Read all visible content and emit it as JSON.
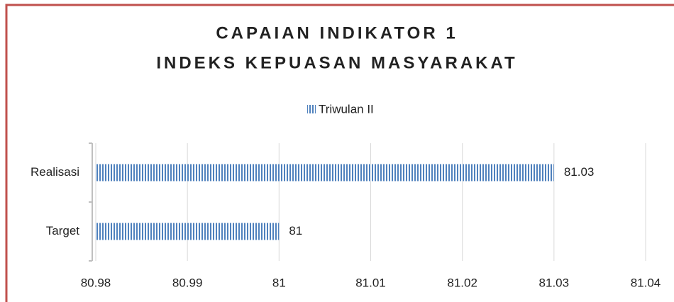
{
  "chart_data": {
    "type": "bar",
    "orientation": "horizontal",
    "title": "CAPAIAN INDIKATOR 1",
    "subtitle": "INDEKS KEPUASAN MASYARAKAT",
    "categories": [
      "Realisasi",
      "Target"
    ],
    "series": [
      {
        "name": "Triwulan II",
        "color": "#4f81bd",
        "values": [
          81.03,
          81
        ]
      }
    ],
    "xlim": [
      80.98,
      81.04
    ],
    "xticks": [
      80.98,
      80.99,
      81,
      81.01,
      81.02,
      81.03,
      81.04
    ],
    "grid": true,
    "legend": "top"
  }
}
